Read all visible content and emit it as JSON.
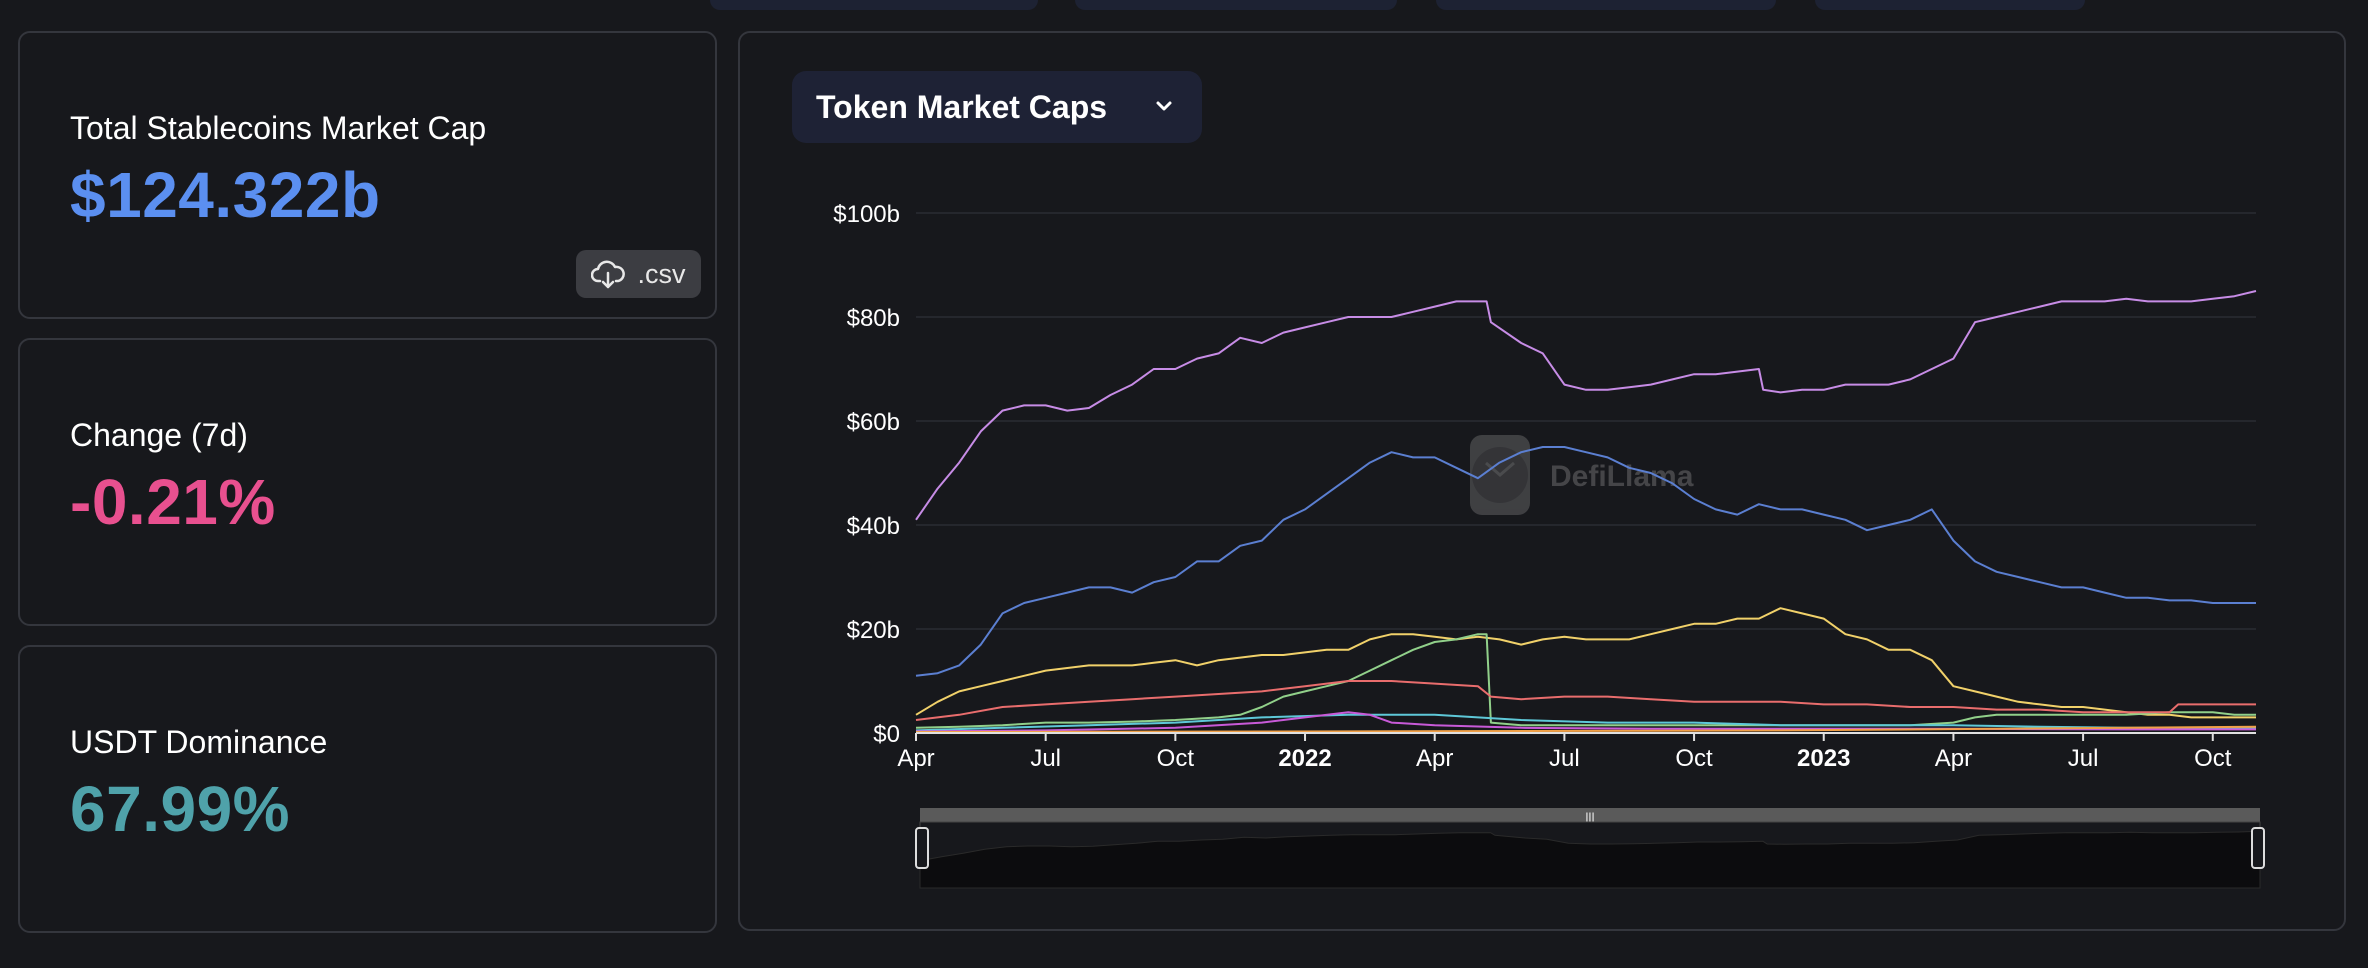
{
  "stats": {
    "market_cap": {
      "label": "Total Stablecoins Market Cap",
      "value": "$124.322b",
      "color": "#5b8ff0"
    },
    "change": {
      "label": "Change (7d)",
      "value": "-0.21%",
      "color": "#e8508f"
    },
    "dominance": {
      "label": "USDT Dominance",
      "value": "67.99%",
      "color": "#4fa2aa"
    }
  },
  "csv_button": {
    "label": ".csv",
    "icon": "cloud-download-icon"
  },
  "chart_selector": {
    "label": "Token Market Caps",
    "icon": "chevron-down-icon"
  },
  "watermark": {
    "text": "DefiLlama",
    "icon": "llama-logo-icon"
  },
  "chart_data": {
    "type": "line",
    "ylim": [
      0,
      100
    ],
    "yticks": [
      "$0",
      "$20b",
      "$40b",
      "$60b",
      "$80b",
      "$100b"
    ],
    "ytick_values": [
      0,
      20,
      40,
      60,
      80,
      100
    ],
    "xticks": [
      {
        "label": "Apr",
        "x": 0,
        "bold": false
      },
      {
        "label": "Jul",
        "x": 3,
        "bold": false
      },
      {
        "label": "Oct",
        "x": 6,
        "bold": false
      },
      {
        "label": "2022",
        "x": 9,
        "bold": true
      },
      {
        "label": "Apr",
        "x": 12,
        "bold": false
      },
      {
        "label": "Jul",
        "x": 15,
        "bold": false
      },
      {
        "label": "Oct",
        "x": 18,
        "bold": false
      },
      {
        "label": "2023",
        "x": 21,
        "bold": true
      },
      {
        "label": "Apr",
        "x": 24,
        "bold": false
      },
      {
        "label": "Jul",
        "x": 27,
        "bold": false
      },
      {
        "label": "Oct",
        "x": 30,
        "bold": false
      }
    ],
    "xlim": [
      0,
      31
    ],
    "series": [
      {
        "color": "#c78ce6",
        "points": [
          [
            0,
            41
          ],
          [
            0.5,
            47
          ],
          [
            1,
            52
          ],
          [
            1.5,
            58
          ],
          [
            2,
            62
          ],
          [
            2.5,
            63
          ],
          [
            3,
            63
          ],
          [
            3.5,
            62
          ],
          [
            4,
            62.5
          ],
          [
            4.5,
            65
          ],
          [
            5,
            67
          ],
          [
            5.5,
            70
          ],
          [
            6,
            70
          ],
          [
            6.5,
            72
          ],
          [
            7,
            73
          ],
          [
            7.5,
            76
          ],
          [
            8,
            75
          ],
          [
            8.5,
            77
          ],
          [
            9,
            78
          ],
          [
            9.5,
            79
          ],
          [
            10,
            80
          ],
          [
            10.5,
            80
          ],
          [
            11,
            80
          ],
          [
            11.5,
            81
          ],
          [
            12,
            82
          ],
          [
            12.5,
            83
          ],
          [
            13.2,
            83
          ],
          [
            13.3,
            79
          ],
          [
            14,
            75
          ],
          [
            14.5,
            73
          ],
          [
            15,
            67
          ],
          [
            15.5,
            66
          ],
          [
            16,
            66
          ],
          [
            16.5,
            66.5
          ],
          [
            17,
            67
          ],
          [
            17.5,
            68
          ],
          [
            18,
            69
          ],
          [
            18.5,
            69
          ],
          [
            19,
            69.5
          ],
          [
            19.5,
            70
          ],
          [
            19.6,
            66
          ],
          [
            20,
            65.5
          ],
          [
            20.5,
            66
          ],
          [
            21,
            66
          ],
          [
            21.5,
            67
          ],
          [
            22,
            67
          ],
          [
            22.5,
            67
          ],
          [
            23,
            68
          ],
          [
            23.5,
            70
          ],
          [
            24,
            72
          ],
          [
            24.5,
            79
          ],
          [
            25,
            80
          ],
          [
            25.5,
            81
          ],
          [
            26,
            82
          ],
          [
            26.5,
            83
          ],
          [
            27,
            83
          ],
          [
            27.5,
            83
          ],
          [
            28,
            83.5
          ],
          [
            28.5,
            83
          ],
          [
            29,
            83
          ],
          [
            29.5,
            83
          ],
          [
            30,
            83.5
          ],
          [
            30.5,
            84
          ],
          [
            31,
            85
          ]
        ]
      },
      {
        "color": "#5b7fd1",
        "points": [
          [
            0,
            11
          ],
          [
            0.5,
            11.5
          ],
          [
            1,
            13
          ],
          [
            1.5,
            17
          ],
          [
            2,
            23
          ],
          [
            2.5,
            25
          ],
          [
            3,
            26
          ],
          [
            3.5,
            27
          ],
          [
            4,
            28
          ],
          [
            4.5,
            28
          ],
          [
            5,
            27
          ],
          [
            5.5,
            29
          ],
          [
            6,
            30
          ],
          [
            6.5,
            33
          ],
          [
            7,
            33
          ],
          [
            7.5,
            36
          ],
          [
            8,
            37
          ],
          [
            8.5,
            41
          ],
          [
            9,
            43
          ],
          [
            9.5,
            46
          ],
          [
            10,
            49
          ],
          [
            10.5,
            52
          ],
          [
            11,
            54
          ],
          [
            11.5,
            53
          ],
          [
            12,
            53
          ],
          [
            12.5,
            51
          ],
          [
            13,
            49
          ],
          [
            13.5,
            52
          ],
          [
            14,
            54
          ],
          [
            14.5,
            55
          ],
          [
            15,
            55
          ],
          [
            15.5,
            54
          ],
          [
            16,
            53
          ],
          [
            16.5,
            51
          ],
          [
            17,
            50
          ],
          [
            17.5,
            48
          ],
          [
            18,
            45
          ],
          [
            18.5,
            43
          ],
          [
            19,
            42
          ],
          [
            19.5,
            44
          ],
          [
            20,
            43
          ],
          [
            20.5,
            43
          ],
          [
            21,
            42
          ],
          [
            21.5,
            41
          ],
          [
            22,
            39
          ],
          [
            22.5,
            40
          ],
          [
            23,
            41
          ],
          [
            23.5,
            43
          ],
          [
            24,
            37
          ],
          [
            24.5,
            33
          ],
          [
            25,
            31
          ],
          [
            25.5,
            30
          ],
          [
            26,
            29
          ],
          [
            26.5,
            28
          ],
          [
            27,
            28
          ],
          [
            27.5,
            27
          ],
          [
            28,
            26
          ],
          [
            28.5,
            26
          ],
          [
            29,
            25.5
          ],
          [
            29.5,
            25.5
          ],
          [
            30,
            25
          ],
          [
            30.5,
            25
          ],
          [
            31,
            25
          ]
        ]
      },
      {
        "color": "#f1d16a",
        "points": [
          [
            0,
            3.5
          ],
          [
            0.5,
            6
          ],
          [
            1,
            8
          ],
          [
            1.5,
            9
          ],
          [
            2,
            10
          ],
          [
            2.5,
            11
          ],
          [
            3,
            12
          ],
          [
            3.5,
            12.5
          ],
          [
            4,
            13
          ],
          [
            4.5,
            13
          ],
          [
            5,
            13
          ],
          [
            5.5,
            13.5
          ],
          [
            6,
            14
          ],
          [
            6.5,
            13
          ],
          [
            7,
            14
          ],
          [
            7.5,
            14.5
          ],
          [
            8,
            15
          ],
          [
            8.5,
            15
          ],
          [
            9,
            15.5
          ],
          [
            9.5,
            16
          ],
          [
            10,
            16
          ],
          [
            10.5,
            18
          ],
          [
            11,
            19
          ],
          [
            11.5,
            19
          ],
          [
            12,
            18.5
          ],
          [
            12.5,
            18
          ],
          [
            13,
            18.5
          ],
          [
            13.5,
            18
          ],
          [
            14,
            17
          ],
          [
            14.5,
            18
          ],
          [
            15,
            18.5
          ],
          [
            15.5,
            18
          ],
          [
            16,
            18
          ],
          [
            16.5,
            18
          ],
          [
            17,
            19
          ],
          [
            17.5,
            20
          ],
          [
            18,
            21
          ],
          [
            18.5,
            21
          ],
          [
            19,
            22
          ],
          [
            19.5,
            22
          ],
          [
            20,
            24
          ],
          [
            20.5,
            23
          ],
          [
            21,
            22
          ],
          [
            21.5,
            19
          ],
          [
            22,
            18
          ],
          [
            22.5,
            16
          ],
          [
            23,
            16
          ],
          [
            23.5,
            14
          ],
          [
            24,
            9
          ],
          [
            24.5,
            8
          ],
          [
            25,
            7
          ],
          [
            25.5,
            6
          ],
          [
            26,
            5.5
          ],
          [
            26.5,
            5
          ],
          [
            27,
            5
          ],
          [
            27.5,
            4.5
          ],
          [
            28,
            4
          ],
          [
            28.5,
            3.5
          ],
          [
            29,
            3.5
          ],
          [
            29.5,
            3
          ],
          [
            30,
            3
          ],
          [
            30.5,
            3
          ],
          [
            31,
            3
          ]
        ]
      },
      {
        "color": "#91d08a",
        "points": [
          [
            0,
            1
          ],
          [
            1,
            1.2
          ],
          [
            2,
            1.5
          ],
          [
            3,
            2
          ],
          [
            4,
            2
          ],
          [
            5,
            2.2
          ],
          [
            6,
            2.5
          ],
          [
            7,
            3
          ],
          [
            7.5,
            3.5
          ],
          [
            8,
            5
          ],
          [
            8.5,
            7
          ],
          [
            9,
            8
          ],
          [
            9.5,
            9
          ],
          [
            10,
            10
          ],
          [
            10.5,
            12
          ],
          [
            11,
            14
          ],
          [
            11.5,
            16
          ],
          [
            12,
            17.5
          ],
          [
            12.5,
            18
          ],
          [
            13,
            19
          ],
          [
            13.2,
            19
          ],
          [
            13.3,
            2
          ],
          [
            14,
            1.5
          ],
          [
            15,
            1.5
          ],
          [
            16,
            1.5
          ],
          [
            17,
            1.5
          ],
          [
            18,
            1.5
          ],
          [
            19,
            1.5
          ],
          [
            20,
            1.5
          ],
          [
            21,
            1.5
          ],
          [
            22,
            1.5
          ],
          [
            23,
            1.5
          ],
          [
            24,
            2
          ],
          [
            24.5,
            3
          ],
          [
            25,
            3.5
          ],
          [
            26,
            3.5
          ],
          [
            27,
            3.5
          ],
          [
            28,
            3.5
          ],
          [
            29,
            4
          ],
          [
            30,
            4
          ],
          [
            30.5,
            3.5
          ],
          [
            31,
            3.5
          ]
        ]
      },
      {
        "color": "#e96d6d",
        "points": [
          [
            0,
            2.5
          ],
          [
            1,
            3.5
          ],
          [
            2,
            5
          ],
          [
            3,
            5.5
          ],
          [
            4,
            6
          ],
          [
            5,
            6.5
          ],
          [
            6,
            7
          ],
          [
            7,
            7.5
          ],
          [
            8,
            8
          ],
          [
            9,
            9
          ],
          [
            10,
            10
          ],
          [
            11,
            10
          ],
          [
            12,
            9.5
          ],
          [
            13,
            9
          ],
          [
            13.3,
            7
          ],
          [
            14,
            6.5
          ],
          [
            15,
            7
          ],
          [
            16,
            7
          ],
          [
            17,
            6.5
          ],
          [
            18,
            6
          ],
          [
            19,
            6
          ],
          [
            20,
            6
          ],
          [
            21,
            5.5
          ],
          [
            22,
            5.5
          ],
          [
            23,
            5
          ],
          [
            24,
            5
          ],
          [
            25,
            4.5
          ],
          [
            26,
            4.5
          ],
          [
            27,
            4
          ],
          [
            28,
            4
          ],
          [
            29,
            4
          ],
          [
            29.2,
            5.5
          ],
          [
            30,
            5.5
          ],
          [
            31,
            5.5
          ]
        ]
      },
      {
        "color": "#5ec8d8",
        "points": [
          [
            0,
            0.5
          ],
          [
            2,
            1
          ],
          [
            4,
            1.5
          ],
          [
            6,
            2
          ],
          [
            8,
            3
          ],
          [
            10,
            3.5
          ],
          [
            12,
            3.5
          ],
          [
            13,
            3
          ],
          [
            14,
            2.5
          ],
          [
            16,
            2
          ],
          [
            18,
            2
          ],
          [
            20,
            1.5
          ],
          [
            22,
            1.5
          ],
          [
            24,
            1.5
          ],
          [
            26,
            1.2
          ],
          [
            28,
            1
          ],
          [
            30,
            1
          ],
          [
            31,
            1
          ]
        ]
      },
      {
        "color": "#c85ad8",
        "points": [
          [
            0,
            0.3
          ],
          [
            3,
            0.5
          ],
          [
            6,
            1
          ],
          [
            8,
            2
          ],
          [
            9,
            3
          ],
          [
            10,
            4
          ],
          [
            10.5,
            3.5
          ],
          [
            11,
            2
          ],
          [
            12,
            1.5
          ],
          [
            14,
            1
          ],
          [
            17,
            0.8
          ],
          [
            20,
            0.8
          ],
          [
            24,
            0.8
          ],
          [
            28,
            0.7
          ],
          [
            31,
            0.7
          ]
        ]
      },
      {
        "color": "#f0a048",
        "points": [
          [
            0,
            0.2
          ],
          [
            10,
            0.3
          ],
          [
            20,
            0.5
          ],
          [
            25,
            0.8
          ],
          [
            28,
            1
          ],
          [
            31,
            1.2
          ]
        ]
      }
    ]
  }
}
